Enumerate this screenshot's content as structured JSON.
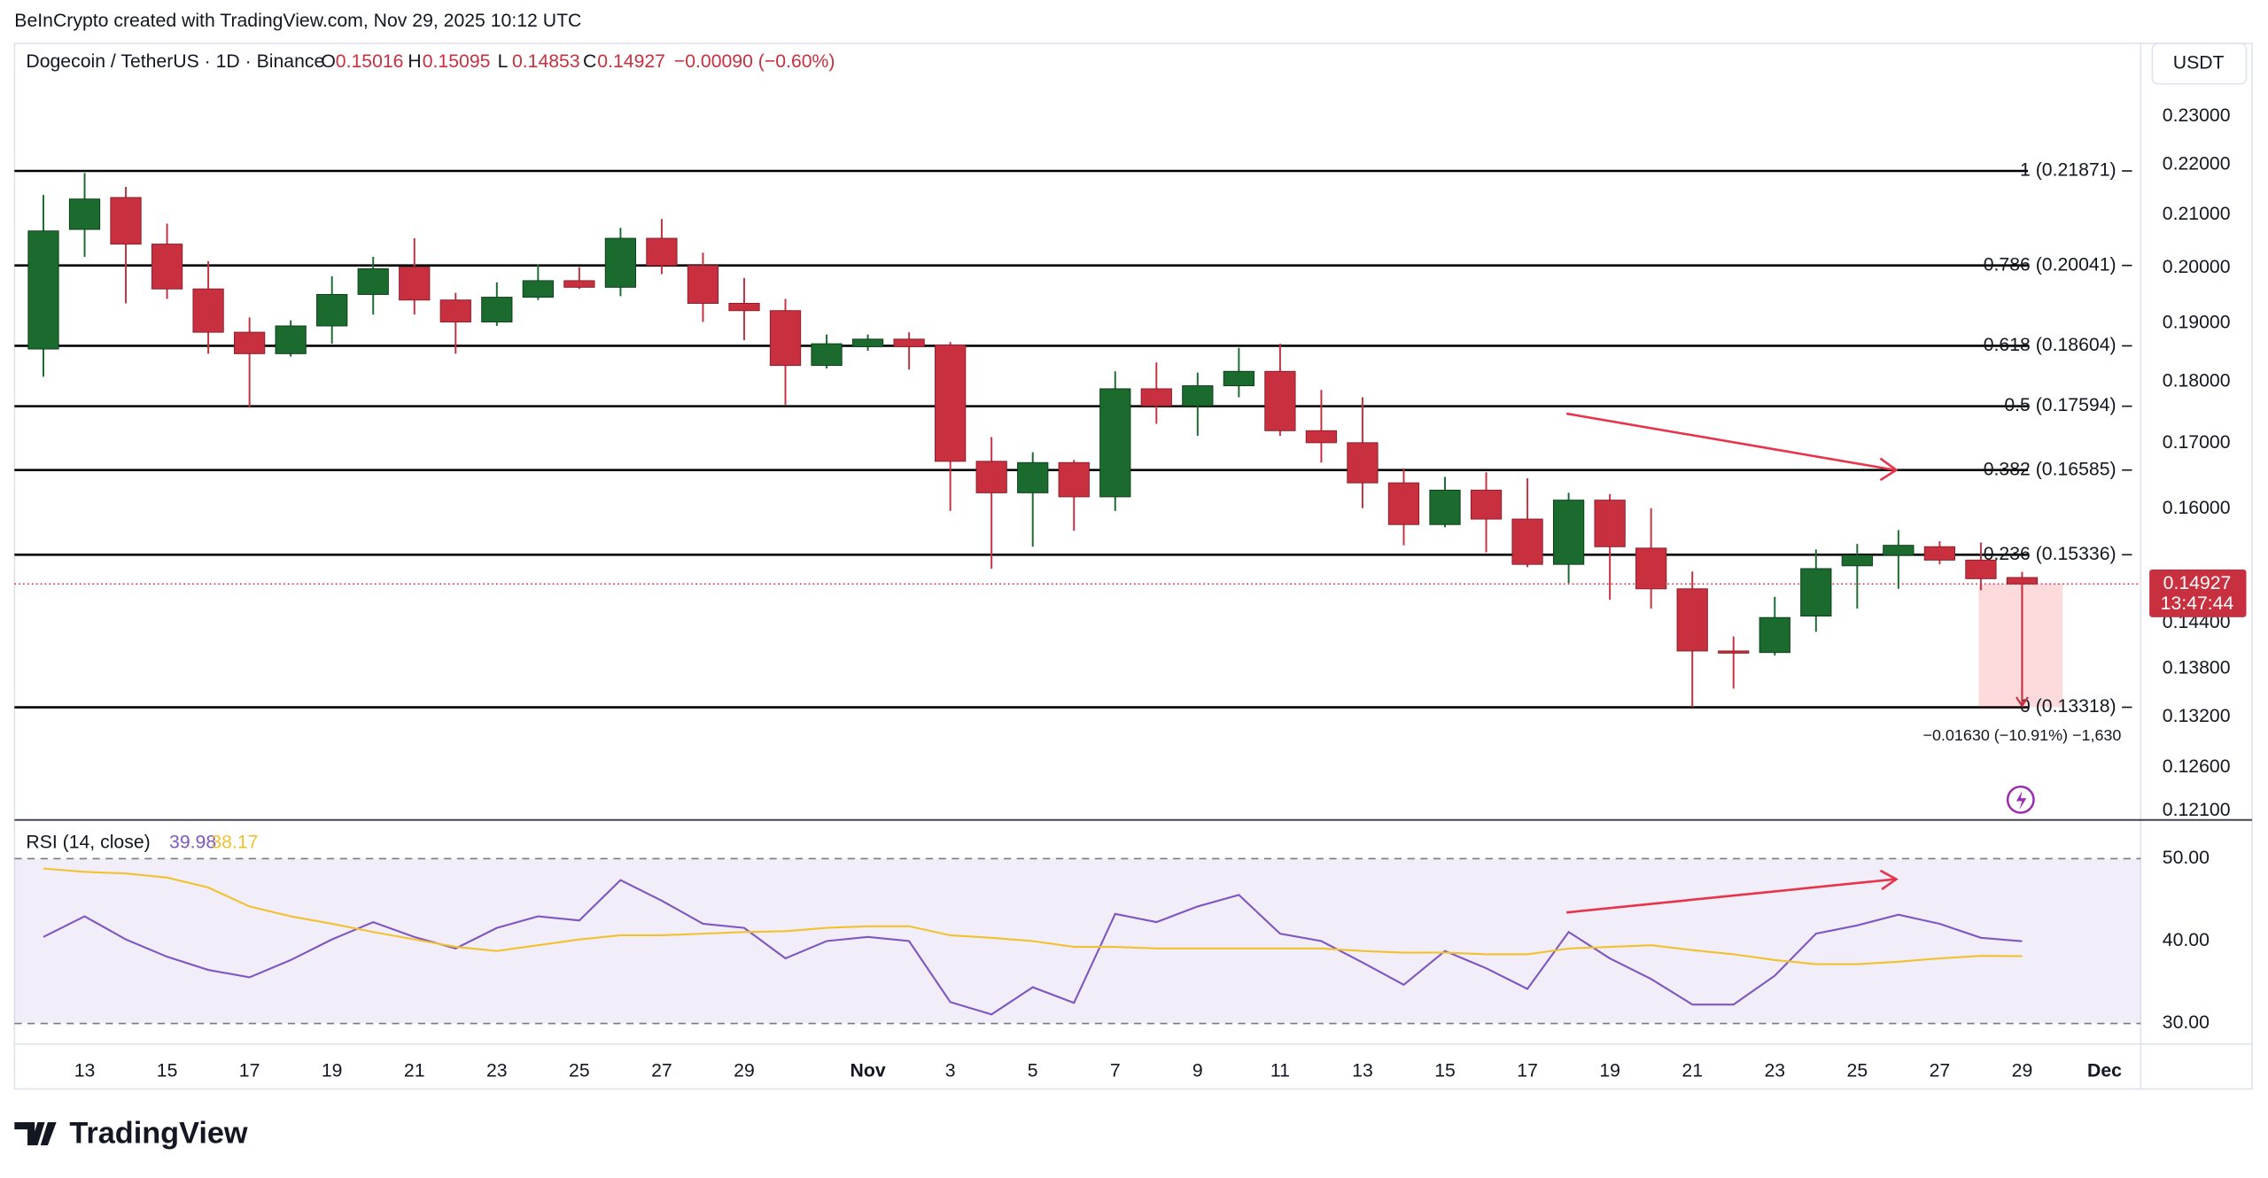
{
  "header": {
    "credit": "BeInCrypto created with TradingView.com, Nov 29, 2025 10:12 UTC",
    "symbol": "Dogecoin / TetherUS · 1D · Binance",
    "o": "O",
    "h": "H",
    "l": "L",
    "c": "C",
    "change": "−0.00090 (−0.60%)",
    "currency": "USDT",
    "brand": "TradingView"
  },
  "chart_data": [
    {
      "type": "candlestick",
      "log_scale": true,
      "up_color": "#1b6b2f",
      "down_color": "#c8303f",
      "categories": [
        null,
        "13",
        null,
        "15",
        null,
        "17",
        null,
        "19",
        null,
        "21",
        null,
        "23",
        null,
        "25",
        null,
        "27",
        null,
        "29",
        null,
        null,
        "Nov",
        null,
        "3",
        null,
        "5",
        null,
        "7",
        null,
        "9",
        null,
        "11",
        null,
        "13",
        null,
        "15",
        null,
        "17",
        null,
        "19",
        null,
        "21",
        null,
        "23",
        null,
        "25",
        null,
        "27",
        null,
        "29",
        null,
        "Dec"
      ],
      "open": [
        0.1855,
        0.2072,
        0.2134,
        0.2044,
        0.1961,
        0.1884,
        0.1847,
        0.1895,
        0.1951,
        0.2001,
        0.1941,
        0.1902,
        0.1946,
        0.1976,
        0.1964,
        0.2055,
        0.2004,
        0.1935,
        0.1922,
        0.1827,
        0.1859,
        0.1872,
        0.1862,
        0.1672,
        0.1624,
        0.167,
        0.1618,
        0.1788,
        0.176,
        0.1793,
        0.1817,
        0.172,
        0.1701,
        0.1639,
        0.1577,
        0.1628,
        0.1585,
        0.152,
        0.1613,
        0.1543,
        0.1486,
        0.1403,
        0.1401,
        0.1449,
        0.1518,
        0.1533,
        0.1545,
        0.1526,
        0.15016,
        null,
        null
      ],
      "high": [
        0.2139,
        0.2183,
        0.2155,
        0.2083,
        0.2012,
        0.191,
        0.1905,
        0.1984,
        0.202,
        0.2055,
        0.1954,
        0.1973,
        0.2006,
        0.2001,
        0.2075,
        0.2092,
        0.2028,
        0.1981,
        0.1943,
        0.188,
        0.188,
        0.1884,
        0.1867,
        0.171,
        0.1686,
        0.1674,
        0.1817,
        0.1832,
        0.1815,
        0.1857,
        0.1864,
        0.1786,
        0.1774,
        0.1661,
        0.1648,
        0.1655,
        0.1646,
        0.1624,
        0.1622,
        0.1601,
        0.151,
        0.1422,
        0.1475,
        0.1541,
        0.1549,
        0.1569,
        0.1553,
        0.1551,
        0.15095,
        null,
        null
      ],
      "low": [
        0.1808,
        0.202,
        0.1935,
        0.1943,
        0.1847,
        0.1757,
        0.1842,
        0.1864,
        0.1915,
        0.1915,
        0.1847,
        0.1895,
        0.1941,
        0.1961,
        0.1948,
        0.1988,
        0.1902,
        0.187,
        0.1762,
        0.1822,
        0.1852,
        0.182,
        0.1597,
        0.1514,
        0.1545,
        0.1568,
        0.1597,
        0.1731,
        0.1712,
        0.1774,
        0.1712,
        0.167,
        0.1601,
        0.1547,
        0.1573,
        0.1537,
        0.1516,
        0.1494,
        0.1471,
        0.1459,
        0.1332,
        0.1355,
        0.1397,
        0.1428,
        0.1459,
        0.1486,
        0.152,
        0.1484,
        0.14853,
        null,
        null
      ],
      "close": [
        0.2069,
        0.2131,
        0.2044,
        0.1961,
        0.1884,
        0.1847,
        0.1895,
        0.1951,
        0.1998,
        0.1941,
        0.1902,
        0.1946,
        0.1976,
        0.1964,
        0.2055,
        0.2004,
        0.1935,
        0.1922,
        0.1827,
        0.1864,
        0.1872,
        0.1859,
        0.1672,
        0.1624,
        0.167,
        0.1618,
        0.1788,
        0.176,
        0.1793,
        0.1817,
        0.172,
        0.1701,
        0.1639,
        0.1577,
        0.1628,
        0.1585,
        0.152,
        0.1613,
        0.1545,
        0.1486,
        0.1403,
        0.1401,
        0.1447,
        0.1514,
        0.1533,
        0.1547,
        0.1526,
        0.15,
        0.14927,
        null,
        null
      ],
      "ylim": [
        0.12,
        0.238
      ],
      "yticks": [
        {
          "value": 0.23,
          "label": "0.23000"
        },
        {
          "value": 0.22,
          "label": "0.22000"
        },
        {
          "value": 0.21,
          "label": "0.21000"
        },
        {
          "value": 0.2,
          "label": "0.20000"
        },
        {
          "value": 0.19,
          "label": "0.19000"
        },
        {
          "value": 0.18,
          "label": "0.18000"
        },
        {
          "value": 0.17,
          "label": "0.17000"
        },
        {
          "value": 0.16,
          "label": "0.16000"
        },
        {
          "value": 0.144,
          "label": "0.14400"
        },
        {
          "value": 0.138,
          "label": "0.13800"
        },
        {
          "value": 0.132,
          "label": "0.13200"
        },
        {
          "value": 0.126,
          "label": "0.12600"
        },
        {
          "value": 0.121,
          "label": "0.12100"
        }
      ],
      "fib_levels": [
        {
          "value": 0.21871,
          "label": "1 (0.21871)"
        },
        {
          "value": 0.20041,
          "label": "0.786 (0.20041)"
        },
        {
          "value": 0.18604,
          "label": "0.618 (0.18604)"
        },
        {
          "value": 0.17594,
          "label": "0.5 (0.17594)"
        },
        {
          "value": 0.16585,
          "label": "0.382 (0.16585)"
        },
        {
          "value": 0.15336,
          "label": "0.236 (0.15336)"
        },
        {
          "value": 0.13318,
          "label": "0 (0.13318)"
        }
      ],
      "last_price": 0.14927,
      "countdown": "13:47:44",
      "measure_label": "−0.01630 (−10.91%) −1,630"
    },
    {
      "type": "line",
      "title": "RSI (14, close)",
      "series": [
        {
          "color": "#7e57c2",
          "values": [
            40.5,
            43.0,
            40.2,
            38.1,
            36.5,
            35.6,
            37.7,
            40.2,
            42.3,
            40.5,
            39.1,
            41.6,
            43.0,
            42.5,
            47.4,
            44.9,
            42.1,
            41.6,
            37.9,
            40.0,
            40.5,
            40.0,
            32.6,
            31.1,
            34.4,
            32.5,
            43.3,
            42.3,
            44.2,
            45.6,
            40.9,
            40.0,
            37.4,
            34.7,
            38.8,
            36.7,
            34.2,
            41.1,
            37.9,
            35.4,
            32.3,
            32.3,
            35.8,
            40.9,
            41.9,
            43.2,
            42.1,
            40.4,
            39.98
          ]
        },
        {
          "color": "#f2c12e",
          "values": [
            48.8,
            48.4,
            48.2,
            47.7,
            46.5,
            44.2,
            43.0,
            42.1,
            41.1,
            40.2,
            39.3,
            38.8,
            39.5,
            40.2,
            40.7,
            40.7,
            40.9,
            41.1,
            41.2,
            41.6,
            41.8,
            41.8,
            40.7,
            40.4,
            40.0,
            39.3,
            39.3,
            39.1,
            39.1,
            39.1,
            39.1,
            39.1,
            38.8,
            38.6,
            38.6,
            38.4,
            38.4,
            39.1,
            39.3,
            39.5,
            38.9,
            38.4,
            37.7,
            37.2,
            37.2,
            37.5,
            37.9,
            38.2,
            38.17
          ]
        }
      ],
      "ylim": [
        27.5,
        54.7
      ],
      "yticks": [
        {
          "value": 50,
          "label": "50.00"
        },
        {
          "value": 40,
          "label": "40.00"
        },
        {
          "value": 30,
          "label": "30.00"
        }
      ],
      "bands": [
        30,
        50
      ]
    }
  ]
}
